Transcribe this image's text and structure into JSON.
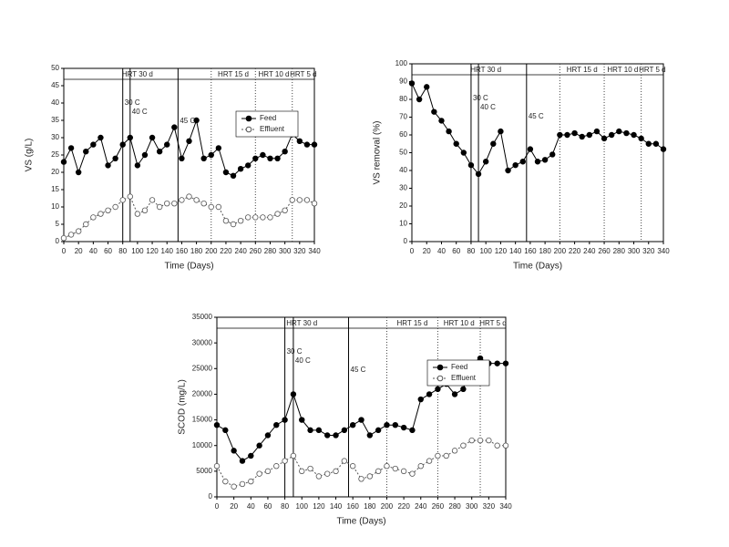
{
  "chart_data": [
    {
      "type": "line",
      "x_label": "Time (Days)",
      "y_label": "VS (g/L)",
      "x": [
        0,
        10,
        20,
        30,
        40,
        50,
        60,
        70,
        80,
        90,
        100,
        110,
        120,
        130,
        140,
        150,
        160,
        170,
        180,
        190,
        200,
        210,
        220,
        230,
        240,
        250,
        260,
        270,
        280,
        290,
        300,
        310,
        320,
        330,
        340
      ],
      "series": [
        {
          "name": "Feed",
          "color": "#000000",
          "marker_fill": "#000000",
          "values": [
            23,
            27,
            20,
            26,
            28,
            30,
            22,
            24,
            28,
            30,
            22,
            25,
            30,
            26,
            28,
            33,
            24,
            29,
            35,
            24,
            25,
            27,
            20,
            19,
            21,
            22,
            24,
            25,
            24,
            24,
            26,
            31,
            29,
            28,
            28
          ]
        },
        {
          "name": "Effluent",
          "color": "#555555",
          "marker_fill": "#ffffff",
          "values": [
            1,
            2,
            3,
            5,
            7,
            8,
            9,
            10,
            12,
            13,
            8,
            9,
            12,
            10,
            11,
            11,
            12,
            13,
            12,
            11,
            10,
            10,
            6,
            5,
            6,
            7,
            7,
            7,
            7,
            8,
            9,
            12,
            12,
            12,
            11
          ]
        }
      ],
      "xlim": [
        0,
        340
      ],
      "ylim": [
        0,
        50
      ],
      "xticks": [
        0,
        20,
        40,
        60,
        80,
        100,
        120,
        140,
        160,
        180,
        200,
        220,
        240,
        260,
        280,
        300,
        320,
        340
      ],
      "yticks": [
        0,
        5,
        10,
        15,
        20,
        25,
        30,
        35,
        40,
        45,
        50
      ],
      "markers": [
        {
          "x": 80,
          "label": "30 C"
        },
        {
          "x": 90,
          "label": "40 C"
        },
        {
          "x": 155,
          "label": "45 C"
        }
      ],
      "phases": [
        {
          "label": "HRT 30 d",
          "start": 0,
          "end": 200
        },
        {
          "label": "HRT 15 d",
          "start": 200,
          "end": 260
        },
        {
          "label": "HRT 10 d",
          "start": 260,
          "end": 310
        },
        {
          "label": "HRT 5 d",
          "start": 310,
          "end": 340
        }
      ],
      "legend": true
    },
    {
      "type": "line",
      "x_label": "Time (Days)",
      "y_label": "VS removal (%)",
      "x": [
        0,
        10,
        20,
        30,
        40,
        50,
        60,
        70,
        80,
        90,
        100,
        110,
        120,
        130,
        140,
        150,
        160,
        170,
        180,
        190,
        200,
        210,
        220,
        230,
        240,
        250,
        260,
        270,
        280,
        290,
        300,
        310,
        320,
        330,
        340
      ],
      "series": [
        {
          "name": "VS removal",
          "color": "#000000",
          "marker_fill": "#000000",
          "values": [
            89,
            80,
            87,
            73,
            68,
            62,
            55,
            50,
            43,
            38,
            45,
            55,
            62,
            40,
            43,
            45,
            52,
            45,
            46,
            49,
            60,
            60,
            61,
            59,
            60,
            62,
            58,
            60,
            62,
            61,
            60,
            58,
            55,
            55,
            52
          ]
        }
      ],
      "xlim": [
        0,
        340
      ],
      "ylim": [
        0,
        100
      ],
      "xticks": [
        0,
        20,
        40,
        60,
        80,
        100,
        120,
        140,
        160,
        180,
        200,
        220,
        240,
        260,
        280,
        300,
        320,
        340
      ],
      "yticks": [
        0,
        10,
        20,
        30,
        40,
        50,
        60,
        70,
        80,
        90,
        100
      ],
      "markers": [
        {
          "x": 80,
          "label": "30 C"
        },
        {
          "x": 90,
          "label": "40 C"
        },
        {
          "x": 155,
          "label": "45 C"
        }
      ],
      "phases": [
        {
          "label": "HRT 30 d",
          "start": 0,
          "end": 200
        },
        {
          "label": "HRT 15 d",
          "start": 200,
          "end": 260
        },
        {
          "label": "HRT 10 d",
          "start": 260,
          "end": 310
        },
        {
          "label": "HRT 5 d",
          "start": 310,
          "end": 340
        }
      ],
      "legend": false
    },
    {
      "type": "line",
      "x_label": "Time (Days)",
      "y_label": "SCOD (mg/L)",
      "x": [
        0,
        10,
        20,
        30,
        40,
        50,
        60,
        70,
        80,
        90,
        100,
        110,
        120,
        130,
        140,
        150,
        160,
        170,
        180,
        190,
        200,
        210,
        220,
        230,
        240,
        250,
        260,
        270,
        280,
        290,
        300,
        310,
        320,
        330,
        340
      ],
      "series": [
        {
          "name": "Feed",
          "color": "#000000",
          "marker_fill": "#000000",
          "values": [
            14000,
            13000,
            9000,
            7000,
            8000,
            10000,
            12000,
            14000,
            15000,
            20000,
            15000,
            13000,
            13000,
            12000,
            12000,
            13000,
            14000,
            15000,
            12000,
            13000,
            14000,
            14000,
            13500,
            13000,
            19000,
            20000,
            21000,
            22000,
            20000,
            21000,
            26000,
            27000,
            26000,
            26000,
            26000
          ]
        },
        {
          "name": "Effluent",
          "color": "#555555",
          "marker_fill": "#ffffff",
          "values": [
            6000,
            3000,
            2000,
            2500,
            3000,
            4500,
            5000,
            6000,
            7000,
            8000,
            5000,
            5500,
            4000,
            4500,
            5000,
            7000,
            6000,
            3500,
            4000,
            5000,
            6000,
            5500,
            5000,
            4500,
            6000,
            7000,
            8000,
            8000,
            9000,
            10000,
            11000,
            11000,
            11000,
            10000,
            10000
          ]
        }
      ],
      "xlim": [
        0,
        340
      ],
      "ylim": [
        0,
        35000
      ],
      "xticks": [
        0,
        20,
        40,
        60,
        80,
        100,
        120,
        140,
        160,
        180,
        200,
        220,
        240,
        260,
        280,
        300,
        320,
        340
      ],
      "yticks": [
        0,
        5000,
        10000,
        15000,
        20000,
        25000,
        30000,
        35000
      ],
      "markers": [
        {
          "x": 80,
          "label": "30 C"
        },
        {
          "x": 90,
          "label": "40 C"
        },
        {
          "x": 155,
          "label": "45 C"
        }
      ],
      "phases": [
        {
          "label": "HRT 30 d",
          "start": 0,
          "end": 200
        },
        {
          "label": "HRT 15 d",
          "start": 200,
          "end": 260
        },
        {
          "label": "HRT 10 d",
          "start": 260,
          "end": 310
        },
        {
          "label": "HRT 5 d",
          "start": 310,
          "end": 340
        }
      ],
      "legend": true
    }
  ]
}
